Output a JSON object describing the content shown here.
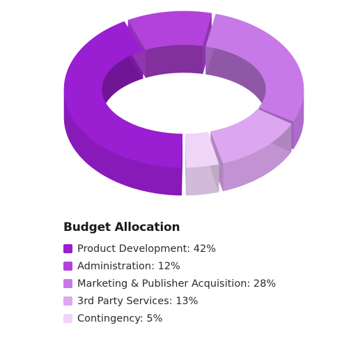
{
  "chart_data": {
    "type": "pie",
    "variant": "3d-donut",
    "title": "Budget Allocation",
    "slices": [
      {
        "label": "Product Development",
        "value": 42,
        "legend_text": "Product Development: 42%",
        "color": "#9a1ed2"
      },
      {
        "label": "Administration",
        "value": 12,
        "legend_text": "Administration: 12%",
        "color": "#b342db"
      },
      {
        "label": "Marketing & Publisher Acquisition",
        "value": 28,
        "legend_text": "Marketing & Publisher Acquisition: 28%",
        "color": "#c77ae7"
      },
      {
        "label": "3rd Party Services",
        "value": 13,
        "legend_text": "3rd Party Services: 13%",
        "color": "#dca6f0"
      },
      {
        "label": "Contingency",
        "value": 5,
        "legend_text": "Contingency: 5%",
        "color": "#efd5f8"
      }
    ],
    "legend_position": "bottom-left"
  }
}
